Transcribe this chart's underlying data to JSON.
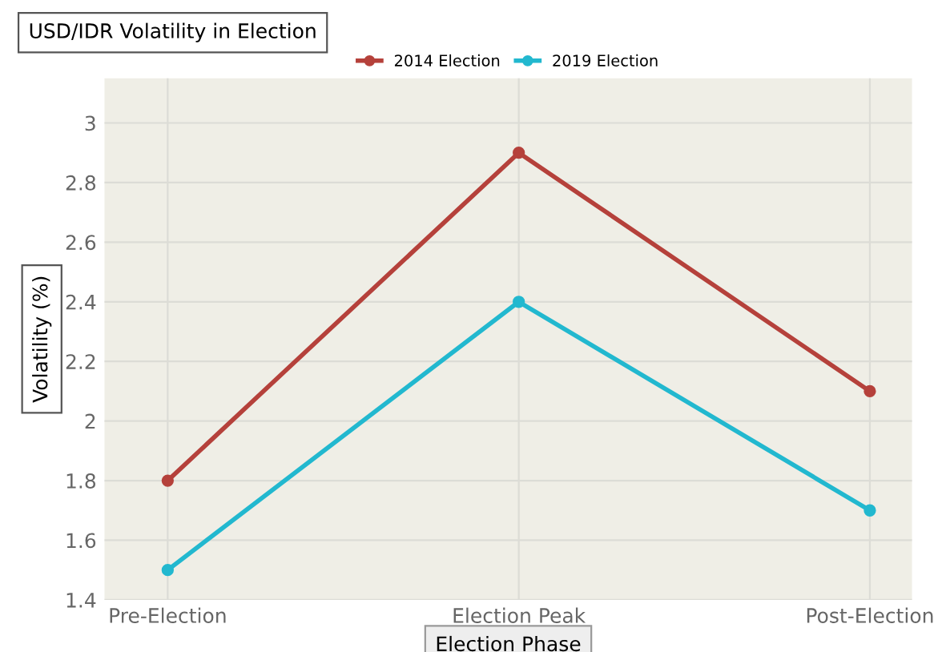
{
  "chart_data": {
    "type": "line",
    "title": "USD/IDR Volatility in Election",
    "xlabel": "Election Phase",
    "ylabel": "Volatility (%)",
    "categories": [
      "Pre-Election",
      "Election Peak",
      "Post-Election"
    ],
    "series": [
      {
        "name": "2014 Election",
        "color": "#b5413b",
        "values": [
          1.8,
          2.9,
          2.1
        ]
      },
      {
        "name": "2019 Election",
        "color": "#22b8cf",
        "values": [
          1.5,
          2.4,
          1.7
        ]
      }
    ],
    "ylim": [
      1.4,
      3.15
    ],
    "yticks": [
      1.4,
      1.6,
      1.8,
      2,
      2.2,
      2.4,
      2.6,
      2.8,
      3
    ],
    "grid": true,
    "legend": "top",
    "marker": "circle",
    "line_style": "solid"
  }
}
